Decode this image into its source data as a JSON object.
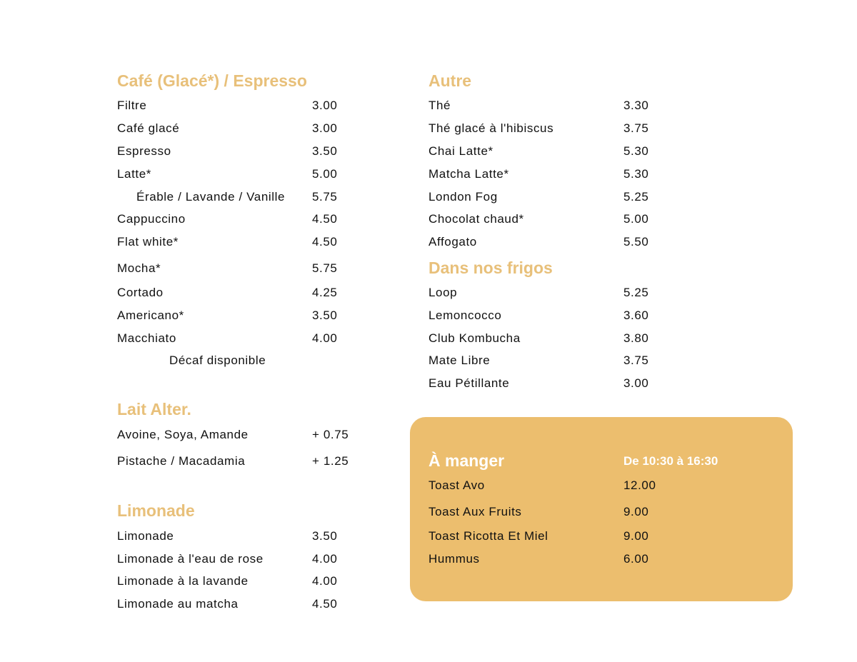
{
  "colors": {
    "heading": "#E8C07A",
    "food_box": "#ECBE6E",
    "text": "#111111"
  },
  "cafe": {
    "title": "Café (Glacé*) / Espresso",
    "items": [
      {
        "name": "Filtre",
        "price": "3.00"
      },
      {
        "name": "Café glacé",
        "price": "3.00"
      },
      {
        "name": "Espresso",
        "price": "3.50"
      },
      {
        "name": "Latte*",
        "price": "5.00"
      },
      {
        "name": "Érable / Lavande / Vanille",
        "price": "5.75"
      },
      {
        "name": "Cappuccino",
        "price": "4.50"
      },
      {
        "name": "Flat white*",
        "price": "4.50"
      },
      {
        "name": "Mocha*",
        "price": "5.75"
      },
      {
        "name": "Cortado",
        "price": "4.25"
      },
      {
        "name": "Americano*",
        "price": "3.50"
      },
      {
        "name": "Macchiato",
        "price": "4.00"
      }
    ],
    "note": "Décaf disponible"
  },
  "lait": {
    "title": "Lait Alter.",
    "items": [
      {
        "name": "Avoine, Soya, Amande",
        "price": "+ 0.75"
      },
      {
        "name": "Pistache / Macadamia",
        "price": "+ 1.25"
      }
    ]
  },
  "limonade": {
    "title": "Limonade",
    "items": [
      {
        "name": "Limonade",
        "price": "3.50"
      },
      {
        "name": "Limonade à l'eau de rose",
        "price": "4.00"
      },
      {
        "name": "Limonade à la lavande",
        "price": "4.00"
      },
      {
        "name": "Limonade au matcha",
        "price": "4.50"
      }
    ]
  },
  "autre": {
    "title": "Autre",
    "items": [
      {
        "name": "Thé",
        "price": "3.30"
      },
      {
        "name": "Thé glacé à l'hibiscus",
        "price": "3.75"
      },
      {
        "name": "Chai Latte*",
        "price": "5.30"
      },
      {
        "name": "Matcha Latte*",
        "price": "5.30"
      },
      {
        "name": "London Fog",
        "price": "5.25"
      },
      {
        "name": "Chocolat chaud*",
        "price": "5.00"
      },
      {
        "name": "Affogato",
        "price": "5.50"
      }
    ]
  },
  "frigos": {
    "title": "Dans nos frigos",
    "items": [
      {
        "name": "Loop",
        "price": "5.25"
      },
      {
        "name": "Lemoncocco",
        "price": "3.60"
      },
      {
        "name": "Club Kombucha",
        "price": "3.80"
      },
      {
        "name": "Mate Libre",
        "price": "3.75"
      },
      {
        "name": "Eau Pétillante",
        "price": "3.00"
      }
    ]
  },
  "manger": {
    "title": "À manger",
    "hours": "De 10:30 à 16:30",
    "items": [
      {
        "name": "Toast Avo",
        "price": "12.00"
      },
      {
        "name": "Toast Aux Fruits",
        "price": "9.00"
      },
      {
        "name": "Toast Ricotta Et Miel",
        "price": "9.00"
      },
      {
        "name": "Hummus",
        "price": "6.00"
      }
    ]
  }
}
